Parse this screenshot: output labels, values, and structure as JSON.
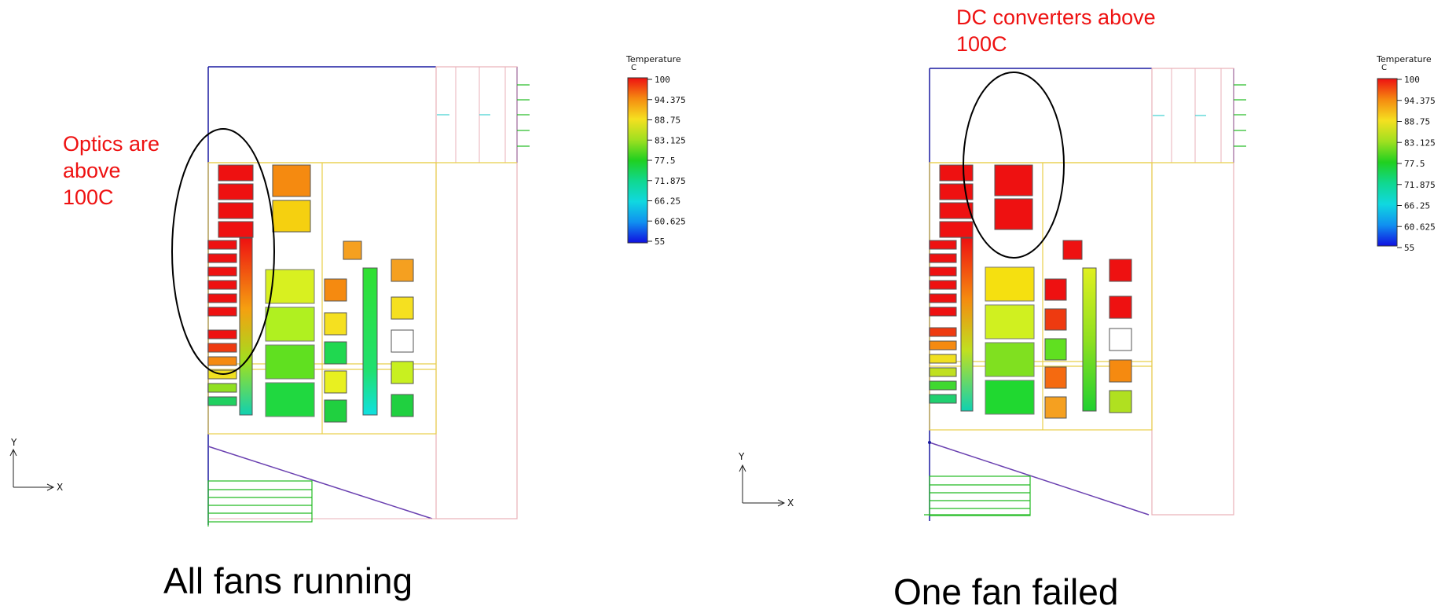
{
  "legend": {
    "title": "Temperature",
    "unit": "C",
    "ticks": [
      "100",
      "94.375",
      "88.75",
      "83.125",
      "77.5",
      "71.875",
      "66.25",
      "60.625",
      "55"
    ]
  },
  "axes": {
    "y": "Y",
    "x": "X"
  },
  "panels": [
    {
      "caption": "All fans running",
      "annotation": [
        "Optics are",
        "above",
        "100C"
      ]
    },
    {
      "caption": "One fan failed",
      "annotation": [
        "DC converters above",
        "100C"
      ]
    }
  ],
  "colors": {
    "hot": "#ee1111",
    "outline": "#1a1aa0",
    "yellow_line": "#e8cf4a",
    "pink_line": "#e8b0b8",
    "green_line": "#22bb22"
  }
}
